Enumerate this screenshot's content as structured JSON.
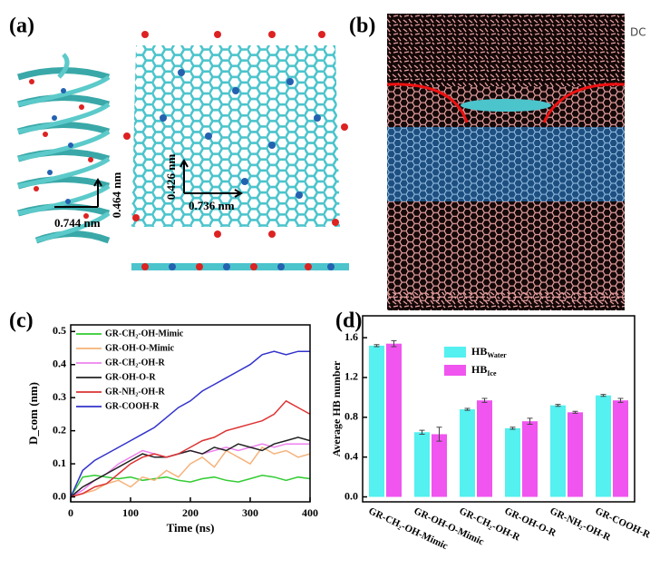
{
  "panel_labels": [
    "(a)",
    "(b)",
    "(c)",
    "(d)"
  ],
  "annotations_a": [
    "0.744 nm",
    "0.464 nm",
    "0.426 nm",
    "0.736 nm"
  ],
  "fragment": "DC",
  "chart_data": [
    {
      "type": "line",
      "xlabel": "Time (ns)",
      "ylabel": "D_com (nm)",
      "x": [
        0,
        20,
        40,
        60,
        80,
        100,
        120,
        140,
        160,
        180,
        200,
        220,
        240,
        260,
        280,
        300,
        320,
        340,
        360,
        380,
        400
      ],
      "xlim": [
        0,
        400
      ],
      "xticks": [
        0,
        100,
        200,
        300,
        400
      ],
      "ylim": [
        -0.015,
        0.52
      ],
      "yticks": [
        {
          "value": 0,
          "label": "0.0"
        },
        0.1,
        0.2,
        0.3,
        0.4,
        0.5
      ],
      "legend": "upper left",
      "series": [
        {
          "name": "GR-CH₂-OH-Mimic",
          "color": "#33cc33",
          "values": [
            0,
            0.06,
            0.065,
            0.06,
            0.055,
            0.06,
            0.05,
            0.055,
            0.06,
            0.05,
            0.045,
            0.055,
            0.06,
            0.05,
            0.045,
            0.055,
            0.065,
            0.06,
            0.05,
            0.06,
            0.055
          ]
        },
        {
          "name": "GR-OH-O-Mimic",
          "color": "#f5b27a",
          "values": [
            0,
            0.01,
            0.02,
            0.04,
            0.05,
            0.03,
            0.06,
            0.05,
            0.08,
            0.06,
            0.1,
            0.12,
            0.09,
            0.14,
            0.12,
            0.1,
            0.15,
            0.13,
            0.14,
            0.12,
            0.13
          ]
        },
        {
          "name": "GR-CH₂-OH-R",
          "color": "#ee82ee",
          "values": [
            0,
            0.02,
            0.05,
            0.07,
            0.1,
            0.12,
            0.14,
            0.13,
            0.12,
            0.13,
            0.14,
            0.13,
            0.14,
            0.15,
            0.14,
            0.15,
            0.16,
            0.15,
            0.16,
            0.16,
            0.16
          ]
        },
        {
          "name": "GR-OH-O-R",
          "color": "#222222",
          "values": [
            0,
            0.03,
            0.05,
            0.07,
            0.09,
            0.11,
            0.13,
            0.12,
            0.12,
            0.13,
            0.14,
            0.13,
            0.15,
            0.14,
            0.16,
            0.15,
            0.14,
            0.16,
            0.17,
            0.18,
            0.17
          ]
        },
        {
          "name": "GR-NH₂-OH-R",
          "color": "#dd3333",
          "values": [
            0,
            0.01,
            0.03,
            0.04,
            0.07,
            0.1,
            0.12,
            0.13,
            0.12,
            0.13,
            0.15,
            0.17,
            0.18,
            0.2,
            0.21,
            0.22,
            0.23,
            0.25,
            0.29,
            0.27,
            0.25
          ]
        },
        {
          "name": "GR-COOH-R",
          "color": "#3333cc",
          "values": [
            0,
            0.08,
            0.11,
            0.13,
            0.15,
            0.17,
            0.19,
            0.21,
            0.24,
            0.27,
            0.29,
            0.32,
            0.34,
            0.36,
            0.38,
            0.4,
            0.43,
            0.44,
            0.43,
            0.44,
            0.44
          ]
        }
      ]
    },
    {
      "type": "bar",
      "ylabel": "Average HB number",
      "categories": [
        "GR-CH₂-OH-Mimic",
        "GR-OH-O-Mimic",
        "GR-CH₂-OH-R",
        "GR-OH-O-R",
        "GR-NH₂-OH-R",
        "GR-COOH-R"
      ],
      "ylim": [
        -0.05,
        1.82
      ],
      "yticks": [
        {
          "value": 0,
          "label": "0.0"
        },
        0.4,
        0.8,
        1.2,
        1.6
      ],
      "legend": "upper right",
      "series": [
        {
          "name": "HB",
          "subscript": "Water",
          "color": "#55f0f0",
          "values": [
            1.52,
            0.65,
            0.88,
            0.69,
            0.92,
            1.02
          ],
          "errors": [
            0.01,
            0.02,
            0.01,
            0.01,
            0.01,
            0.01
          ]
        },
        {
          "name": "HB",
          "subscript": "Ice",
          "color": "#f055f0",
          "values": [
            1.54,
            0.63,
            0.97,
            0.76,
            0.85,
            0.97
          ],
          "errors": [
            0.03,
            0.07,
            0.02,
            0.03,
            0.01,
            0.02
          ]
        }
      ]
    }
  ]
}
